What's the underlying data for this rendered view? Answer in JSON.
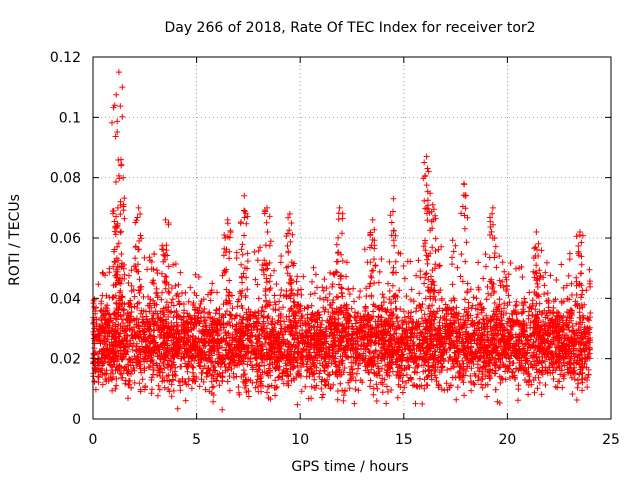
{
  "chart_data": {
    "type": "scatter",
    "title": "Day 266 of 2018, Rate Of TEC Index for receiver tor2",
    "xlabel": "GPS time / hours",
    "ylabel": "ROTI / TECUs",
    "xlim": [
      0,
      25
    ],
    "ylim": [
      0,
      0.12
    ],
    "x_ticks": [
      0,
      5,
      10,
      15,
      20,
      25
    ],
    "x_tick_labels": [
      "0",
      "5",
      "10",
      "15",
      "20",
      "25"
    ],
    "y_ticks": [
      0,
      0.02,
      0.04,
      0.06,
      0.08,
      0.1,
      0.12
    ],
    "y_tick_labels": [
      "0",
      "0.02",
      "0.04",
      "0.06",
      "0.08",
      "0.1",
      "0.12"
    ],
    "grid": true,
    "marker": "+",
    "color": "#ff0000",
    "time_span_hours": [
      0,
      24
    ],
    "bulk_range": [
      0.005,
      0.045
    ],
    "peaks": [
      {
        "x": 1.25,
        "y": 0.115
      },
      {
        "x": 1.05,
        "y": 0.104
      },
      {
        "x": 1.35,
        "y": 0.086
      },
      {
        "x": 1.2,
        "y": 0.07
      },
      {
        "x": 2.2,
        "y": 0.07
      },
      {
        "x": 3.5,
        "y": 0.066
      },
      {
        "x": 6.5,
        "y": 0.066
      },
      {
        "x": 7.3,
        "y": 0.074
      },
      {
        "x": 8.4,
        "y": 0.07
      },
      {
        "x": 9.5,
        "y": 0.068
      },
      {
        "x": 11.9,
        "y": 0.07
      },
      {
        "x": 13.5,
        "y": 0.066
      },
      {
        "x": 14.5,
        "y": 0.073
      },
      {
        "x": 16.1,
        "y": 0.087
      },
      {
        "x": 16.2,
        "y": 0.082
      },
      {
        "x": 16.4,
        "y": 0.071
      },
      {
        "x": 17.9,
        "y": 0.078
      },
      {
        "x": 19.3,
        "y": 0.07
      },
      {
        "x": 21.4,
        "y": 0.062
      },
      {
        "x": 23.5,
        "y": 0.062
      }
    ]
  }
}
